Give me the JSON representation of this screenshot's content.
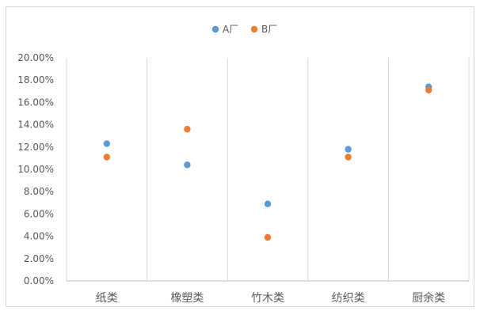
{
  "chart_data": {
    "type": "scatter",
    "categories": [
      "纸类",
      "橡塑类",
      "竹木类",
      "纺织类",
      "厨余类"
    ],
    "series": [
      {
        "name": "A厂",
        "color": "#5b9bd5",
        "values": [
          12.3,
          10.4,
          6.9,
          11.8,
          17.4
        ]
      },
      {
        "name": "B厂",
        "color": "#ed7d31",
        "values": [
          11.1,
          13.6,
          3.9,
          11.1,
          17.1
        ]
      }
    ],
    "y_ticks": [
      "0.00%",
      "2.00%",
      "4.00%",
      "6.00%",
      "8.00%",
      "10.00%",
      "12.00%",
      "14.00%",
      "16.00%",
      "18.00%",
      "20.00%"
    ],
    "ylim": [
      0,
      20
    ],
    "grid": "vertical separators and horizontal axis line",
    "legend_position": "top-center"
  }
}
